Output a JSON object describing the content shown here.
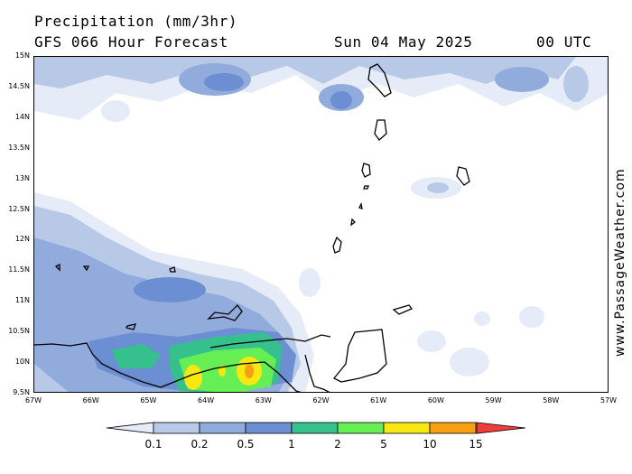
{
  "header": {
    "title": "Precipitation (mm/3hr)",
    "subtitle": "GFS 066 Hour Forecast",
    "date": "Sun 04 May 2025",
    "time": "00 UTC"
  },
  "watermark": "www.PassageWeather.com",
  "axes": {
    "lat_labels": [
      "15N",
      "14.5N",
      "14N",
      "13.5N",
      "13N",
      "12.5N",
      "12N",
      "11.5N",
      "11N",
      "10.5N",
      "10N",
      "9.5N"
    ],
    "lat_values": [
      15,
      14.5,
      14,
      13.5,
      13,
      12.5,
      12,
      11.5,
      11,
      10.5,
      10,
      9.5
    ],
    "lon_labels": [
      "67W",
      "66W",
      "65W",
      "64W",
      "63W",
      "62W",
      "61W",
      "60W",
      "59W",
      "58W",
      "57W"
    ],
    "lon_values": [
      -67,
      -66,
      -65,
      -64,
      -63,
      -62,
      -61,
      -60,
      -59,
      -58,
      -57
    ]
  },
  "legend": {
    "labels": [
      "0.1",
      "0.2",
      "0.5",
      "1",
      "2",
      "5",
      "10",
      "15"
    ],
    "colors": [
      "#e6ecf7",
      "#b8c9e8",
      "#91acdc",
      "#6b8fd2",
      "#35c08d",
      "#66ee55",
      "#f7e812",
      "#f7a011",
      "#ee3d3d"
    ]
  },
  "map": {
    "land_color": "none",
    "coast_color": "#000000",
    "region": "Southeastern Caribbean: Venezuela coast, Trinidad and Tobago, Windward Islands"
  }
}
